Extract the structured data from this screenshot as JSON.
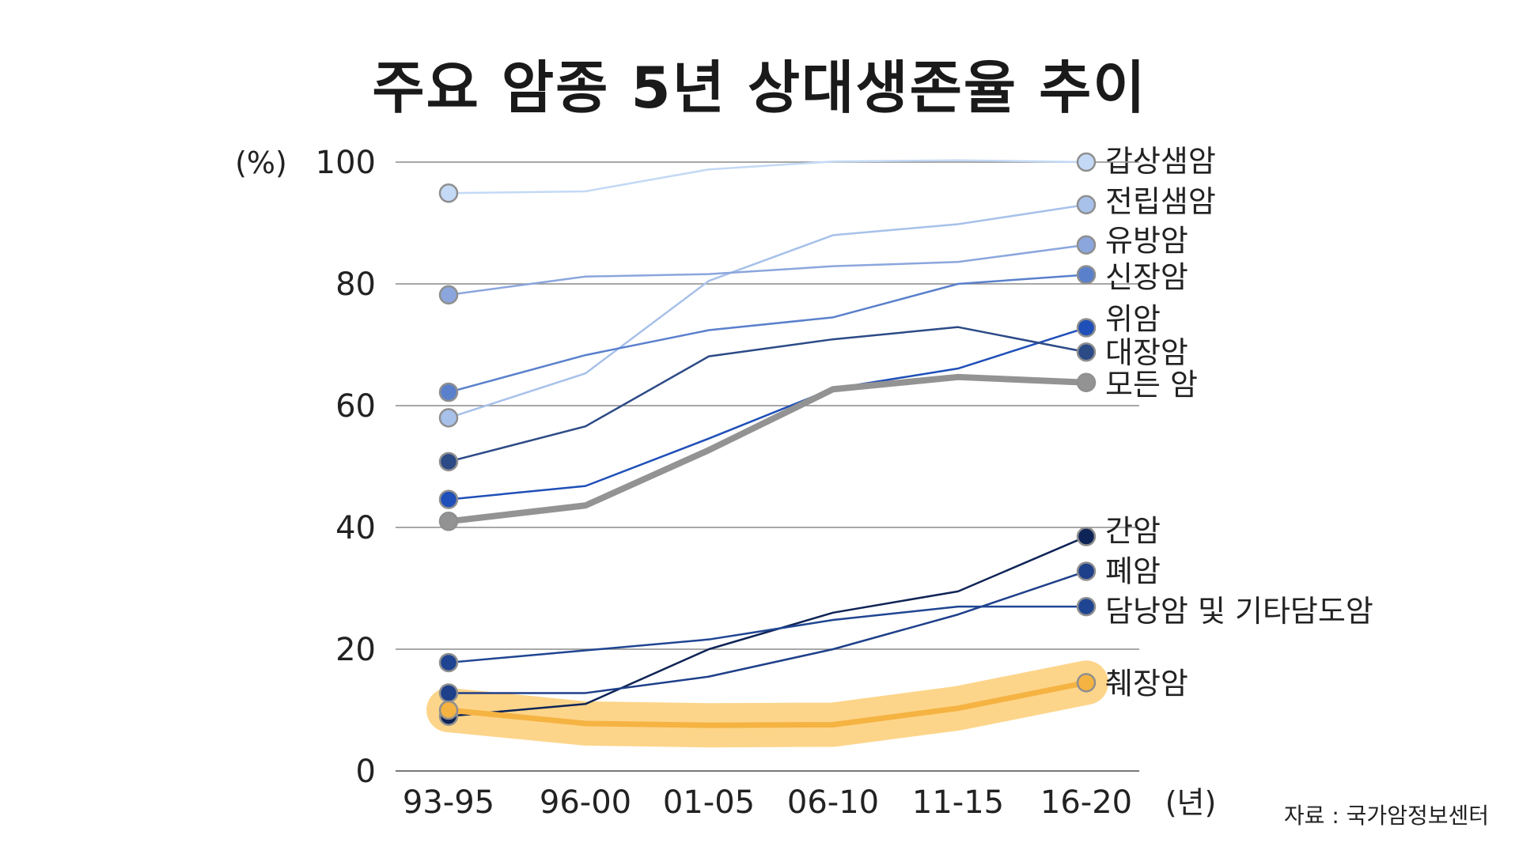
{
  "chart_data": {
    "type": "line",
    "title": "주요 암종 5년 상대생존율 추이",
    "ylabel": "(%)",
    "xlabel": "(년)",
    "source": "자료 : 국가암정보센터",
    "categories": [
      "93-95",
      "96-00",
      "01-05",
      "06-10",
      "11-15",
      "16-20"
    ],
    "ylim": [
      0,
      100
    ],
    "yticks": [
      0,
      20,
      40,
      60,
      80,
      100
    ],
    "grid": true,
    "series": [
      {
        "name": "갑상샘암",
        "values": [
          94.9,
          95.2,
          98.8,
          100.1,
          100.3,
          100.0
        ],
        "color": "#c4d9f5"
      },
      {
        "name": "전립샘암",
        "values": [
          58.0,
          65.3,
          80.5,
          88.0,
          89.8,
          93.0
        ],
        "color": "#a7c1ea"
      },
      {
        "name": "유방암",
        "values": [
          78.2,
          81.2,
          81.6,
          82.9,
          83.6,
          86.4
        ],
        "color": "#8ba6dd"
      },
      {
        "name": "신장암",
        "values": [
          62.2,
          68.3,
          72.4,
          74.5,
          80.0,
          81.5
        ],
        "color": "#5a80cc"
      },
      {
        "name": "위암",
        "values": [
          44.6,
          46.8,
          54.6,
          62.8,
          66.1,
          72.8
        ],
        "color": "#1f4fb8"
      },
      {
        "name": "대장암",
        "values": [
          50.8,
          56.6,
          68.1,
          70.9,
          72.9,
          68.8
        ],
        "color": "#2c4a86"
      },
      {
        "name": "모든 암",
        "values": [
          41.0,
          43.6,
          52.7,
          62.7,
          64.7,
          63.8
        ],
        "color": "#939393",
        "width": 8
      },
      {
        "name": "간암",
        "values": [
          9.0,
          11.0,
          20.0,
          26.0,
          29.5,
          38.5
        ],
        "color": "#0f2456"
      },
      {
        "name": "폐암",
        "values": [
          12.8,
          12.8,
          15.5,
          20.0,
          25.7,
          32.8
        ],
        "color": "#1e3f8a"
      },
      {
        "name": "담낭암 및 기타담도암",
        "values": [
          17.8,
          19.8,
          21.6,
          24.8,
          27.0,
          27.0
        ],
        "color": "#1f4592"
      },
      {
        "name": "췌장암",
        "values": [
          10.0,
          7.8,
          7.5,
          7.6,
          10.3,
          14.5
        ],
        "color": "#f5b342",
        "highlight": "#fdd58a"
      }
    ]
  }
}
